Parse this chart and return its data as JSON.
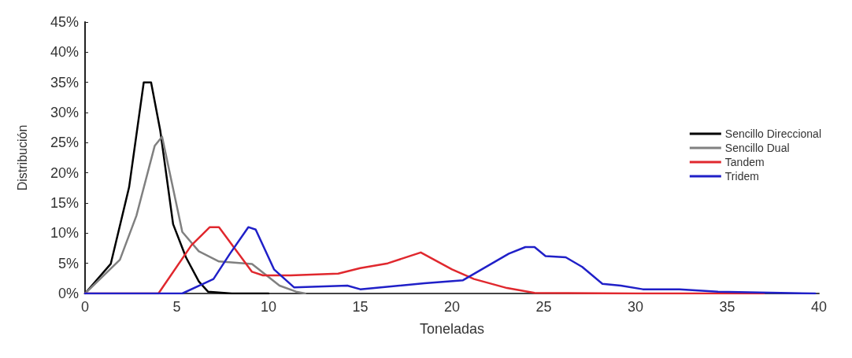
{
  "chart_data": {
    "type": "line",
    "xlabel": "Toneladas",
    "ylabel": "Distribución",
    "xlim": [
      0,
      40
    ],
    "xticks": [
      0,
      5,
      10,
      15,
      20,
      25,
      30,
      35,
      40
    ],
    "ylim": [
      0,
      45
    ],
    "yticks": [
      {
        "value": 0,
        "label": "0%"
      },
      {
        "value": 5,
        "label": "5%"
      },
      {
        "value": 10,
        "label": "10%"
      },
      {
        "value": 15,
        "label": "15%"
      },
      {
        "value": 20,
        "label": "20%"
      },
      {
        "value": 25,
        "label": "25%"
      },
      {
        "value": 30,
        "label": "30%"
      },
      {
        "value": 35,
        "label": "35%"
      },
      {
        "value": 40,
        "label": "40%"
      },
      {
        "value": 45,
        "label": "45%"
      }
    ],
    "grid": false,
    "legend": "right",
    "marker": "none",
    "line_style": "solid",
    "series": [
      {
        "name": "Sencillo Direccional",
        "color": "#000000",
        "x": [
          0,
          1.4,
          2.4,
          3.2,
          3.6,
          4.1,
          4.8,
          5.5,
          6.2,
          6.7,
          8,
          10
        ],
        "values": [
          0,
          4.9,
          17.6,
          35,
          35,
          27,
          11.5,
          6,
          2,
          0.3,
          0,
          0
        ]
      },
      {
        "name": "Sencillo Dual",
        "color": "#808080",
        "x": [
          0,
          1.9,
          2.8,
          3.8,
          4.2,
          5.3,
          6.2,
          7.3,
          9.1,
          10.6,
          11.5,
          12
        ],
        "values": [
          0,
          5.6,
          12.9,
          24.5,
          26,
          10.2,
          7,
          5.3,
          4.9,
          1.3,
          0.3,
          0
        ]
      },
      {
        "name": "Tandem",
        "color": "#e0282e",
        "x": [
          0,
          4,
          5.8,
          6.8,
          7.3,
          9.1,
          9.7,
          11.2,
          13.8,
          15,
          16.5,
          18.3,
          20,
          21.2,
          23,
          24.5,
          30,
          37
        ],
        "values": [
          0,
          0,
          8,
          11,
          11,
          3.6,
          3,
          3,
          3.3,
          4.2,
          5,
          6.8,
          4,
          2.4,
          0.9,
          0.1,
          0,
          0
        ]
      },
      {
        "name": "Tridem",
        "color": "#2020c8",
        "x": [
          0,
          5.3,
          7,
          7.9,
          8.9,
          9.3,
          10.3,
          11.4,
          14.3,
          15,
          18.5,
          20.6,
          23.1,
          24,
          24.5,
          25.1,
          26.2,
          27.1,
          28.2,
          29.2,
          30.4,
          32.4,
          34.5,
          39.8
        ],
        "values": [
          0,
          0,
          2.4,
          6.6,
          11,
          10.6,
          4,
          1,
          1.3,
          0.7,
          1.7,
          2.2,
          6.6,
          7.7,
          7.7,
          6.2,
          6,
          4.4,
          1.6,
          1.3,
          0.7,
          0.7,
          0.3,
          0
        ]
      }
    ]
  }
}
